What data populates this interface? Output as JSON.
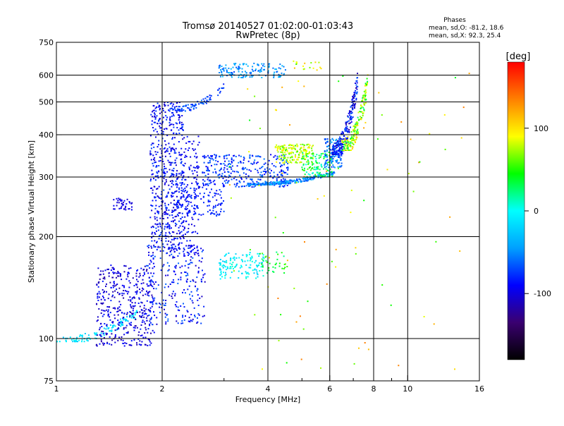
{
  "chart_data": {
    "type": "scatter",
    "title": "Tromsø 20140527 01:02:00-01:03:43",
    "subtitle": "RwPretec (8p)",
    "xlabel": "Frequency [MHz]",
    "ylabel": "Stationary phase Virtual Height [km]",
    "x_scale": "log",
    "y_scale": "log",
    "xlim": [
      1,
      16
    ],
    "ylim": [
      75,
      750
    ],
    "x_ticks": [
      1,
      2,
      4,
      6,
      8,
      10,
      16
    ],
    "x_tick_labels": [
      "1",
      "2",
      "4",
      "6",
      "8",
      "10",
      "16"
    ],
    "x_minor_ticks": [
      3,
      5,
      7,
      9
    ],
    "y_ticks": [
      75,
      100,
      200,
      300,
      400,
      500,
      600,
      750
    ],
    "y_tick_labels": [
      "75",
      "100",
      "200",
      "300",
      "400",
      "500",
      "600",
      "750"
    ],
    "grid": true,
    "stats": {
      "header": "Phases",
      "line_o": "mean, sd,O: -81.2, 18.6",
      "line_x": "mean, sd,X:  92.3, 25.4"
    },
    "colorbar": {
      "label": "[deg]",
      "range": [
        -180,
        180
      ],
      "ticks": [
        100,
        0,
        -100
      ],
      "tick_labels": [
        "100",
        "0",
        "-100"
      ],
      "colors": [
        "#000000",
        "#3a0070",
        "#0000ff",
        "#00a0ff",
        "#00ffff",
        "#00ff00",
        "#ffff00",
        "#ff8000",
        "#ff0000"
      ]
    },
    "clusters": [
      {
        "x": [
          1.0,
          1.7
        ],
        "y": [
          98,
          125
        ],
        "phase": [
          -30,
          0
        ],
        "n": 110,
        "trend": "rise"
      },
      {
        "x": [
          1.3,
          1.9
        ],
        "y": [
          95,
          165
        ],
        "phase": [
          -120,
          -80
        ],
        "n": 420
      },
      {
        "x": [
          1.8,
          2.65
        ],
        "y": [
          110,
          190
        ],
        "phase": [
          -110,
          -60
        ],
        "n": 260
      },
      {
        "x": [
          1.85,
          2.3
        ],
        "y": [
          180,
          500
        ],
        "phase": [
          -110,
          -70
        ],
        "n": 560
      },
      {
        "x": [
          2.3,
          2.55
        ],
        "y": [
          175,
          400
        ],
        "phase": [
          -105,
          -80
        ],
        "n": 130
      },
      {
        "x": [
          1.45,
          1.65
        ],
        "y": [
          240,
          260
        ],
        "phase": [
          -110,
          -90
        ],
        "n": 40
      },
      {
        "x": [
          2.2,
          3.0
        ],
        "y": [
          230,
          290
        ],
        "phase": [
          -95,
          -70
        ],
        "n": 140
      },
      {
        "x": [
          2.9,
          3.9
        ],
        "y": [
          150,
          180
        ],
        "phase": [
          -25,
          10
        ],
        "n": 130
      },
      {
        "x": [
          3.8,
          4.5
        ],
        "y": [
          155,
          180
        ],
        "phase": [
          20,
          60
        ],
        "n": 35
      },
      {
        "x": [
          2.6,
          4.6
        ],
        "y": [
          280,
          350
        ],
        "phase": [
          -95,
          -55
        ],
        "n": 320
      },
      {
        "x": [
          3.5,
          6.2
        ],
        "y": [
          285,
          315
        ],
        "phase": [
          -75,
          -25
        ],
        "n": 260,
        "trend": "rise"
      },
      {
        "x": [
          4.2,
          5.4
        ],
        "y": [
          330,
          375
        ],
        "phase": [
          50,
          100
        ],
        "n": 180
      },
      {
        "x": [
          5.0,
          6.1
        ],
        "y": [
          300,
          355
        ],
        "phase": [
          0,
          60
        ],
        "n": 120
      },
      {
        "x": [
          5.8,
          6.5
        ],
        "y": [
          320,
          390
        ],
        "phase": [
          -80,
          -30
        ],
        "n": 120
      },
      {
        "x": [
          6.1,
          7.2
        ],
        "y": [
          350,
          650
        ],
        "phase": [
          -120,
          -60
        ],
        "n": 240,
        "trend": "rise"
      },
      {
        "x": [
          6.5,
          7.7
        ],
        "y": [
          360,
          640
        ],
        "phase": [
          20,
          110
        ],
        "n": 200,
        "trend": "rise"
      },
      {
        "x": [
          2.1,
          3.0
        ],
        "y": [
          470,
          580
        ],
        "phase": [
          -85,
          -55
        ],
        "n": 80,
        "trend": "rise"
      },
      {
        "x": [
          2.9,
          4.5
        ],
        "y": [
          590,
          650
        ],
        "phase": [
          -70,
          -30
        ],
        "n": 140
      },
      {
        "x": [
          4.5,
          5.7
        ],
        "y": [
          620,
          660
        ],
        "phase": [
          50,
          120
        ],
        "n": 18
      },
      {
        "x": [
          3.0,
          15.0
        ],
        "y": [
          80,
          620
        ],
        "phase": [
          40,
          140
        ],
        "n": 90
      }
    ]
  }
}
